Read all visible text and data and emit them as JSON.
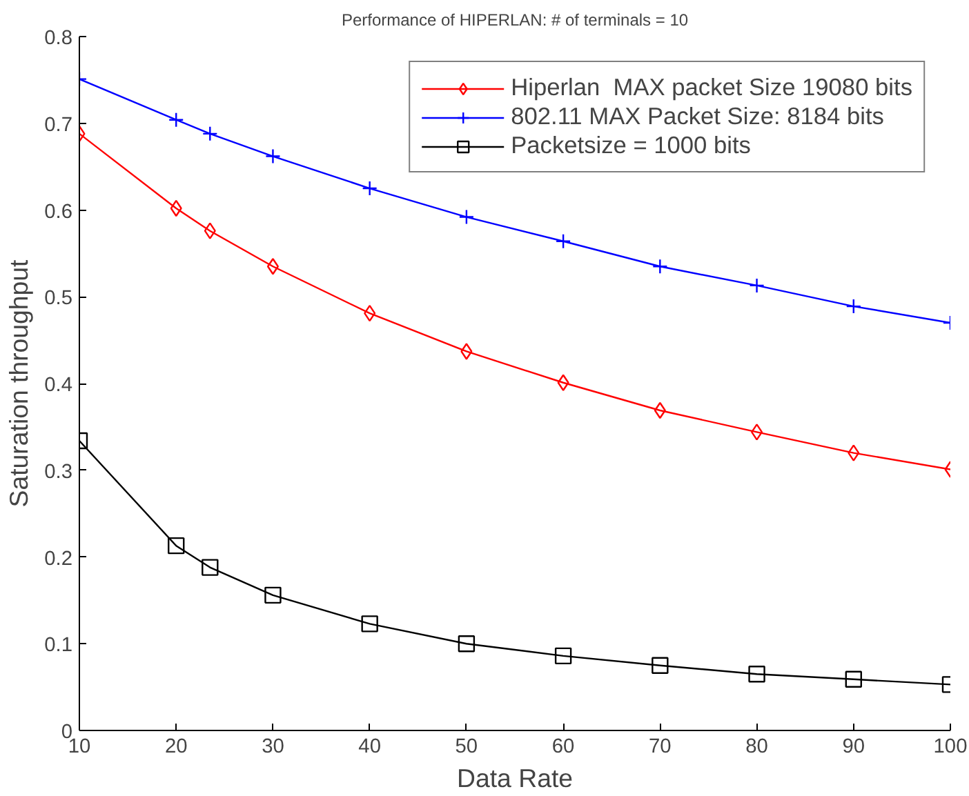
{
  "chart_data": {
    "type": "line",
    "title": "Performance of HIPERLAN: # of terminals = 10",
    "xlabel": "Data Rate",
    "ylabel": "Saturation throughput",
    "x": [
      10,
      20,
      23.5,
      30,
      40,
      50,
      60,
      70,
      80,
      90,
      100
    ],
    "series": [
      {
        "name": "Hiperlan  MAX packet Size 19080 bits",
        "color": "#ff0000",
        "marker": "diamond",
        "values": [
          0.688,
          0.602,
          0.576,
          0.535,
          0.481,
          0.437,
          0.401,
          0.369,
          0.344,
          0.32,
          0.301
        ]
      },
      {
        "name": "802.11 MAX Packet Size: 8184 bits",
        "color": "#0000ff",
        "marker": "cross",
        "values": [
          0.751,
          0.704,
          0.688,
          0.662,
          0.625,
          0.592,
          0.564,
          0.535,
          0.513,
          0.489,
          0.47
        ]
      },
      {
        "name": "Packetsize = 1000 bits",
        "color": "#000000",
        "marker": "square",
        "values": [
          0.334,
          0.213,
          0.188,
          0.156,
          0.123,
          0.1,
          0.086,
          0.075,
          0.065,
          0.059,
          0.053
        ]
      }
    ],
    "xlim": [
      10,
      100
    ],
    "ylim": [
      0,
      0.8
    ],
    "xticks": [
      10,
      20,
      30,
      40,
      50,
      60,
      70,
      80,
      90,
      100
    ],
    "yticks": [
      0,
      0.1,
      0.2,
      0.3,
      0.4,
      0.5,
      0.6,
      0.7,
      0.8
    ],
    "grid": false,
    "legend": "top right",
    "line_style": "solid"
  }
}
